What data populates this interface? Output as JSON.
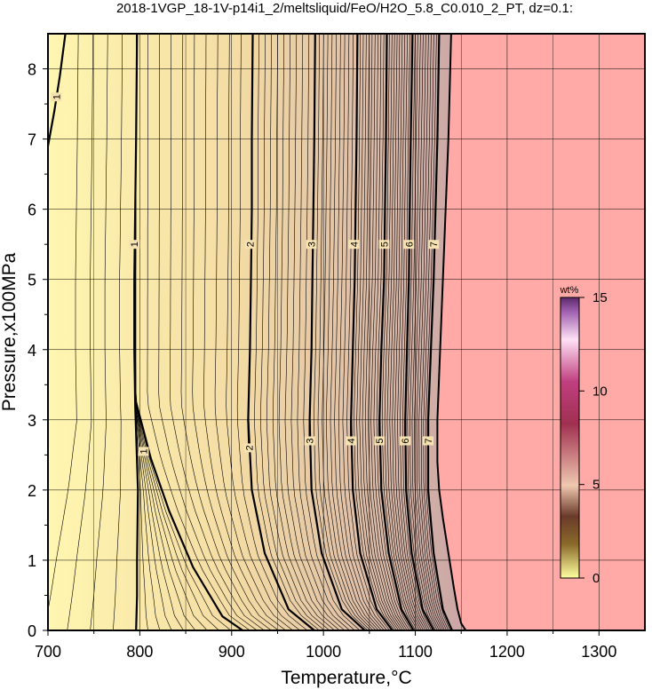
{
  "chart_data": {
    "type": "heatmap",
    "title": "2018-1VGP_18-1V-p14i1_2/meltsliquid/FeO/H2O_5.8_C0.010_2_PT, dz=0.1:",
    "xlabel": "Temperature,°C",
    "ylabel": "Pressure,x100MPa",
    "xlim": [
      700,
      1350
    ],
    "ylim": [
      0,
      8.5
    ],
    "x_ticks": [
      "700",
      "800",
      "900",
      "1000",
      "1100",
      "1200",
      "1300"
    ],
    "y_ticks": [
      "0",
      "1",
      "2",
      "3",
      "4",
      "5",
      "6",
      "7",
      "8"
    ],
    "grid": true,
    "contour_interval": 0.1,
    "colorbar": {
      "unit": "wt%",
      "range": [
        0,
        15
      ],
      "ticks": [
        "0",
        "5",
        "10",
        "15"
      ],
      "placement": "right-inside"
    },
    "no_data_color": "#ffaaa6",
    "low_value_color": "#fff6b0",
    "high_value_color": "#c9a5a5",
    "major_contours": [
      {
        "level": "1",
        "points": [
          [
            796,
            0
          ],
          [
            797,
            0.5
          ],
          [
            797,
            1
          ],
          [
            798,
            2
          ],
          [
            795,
            3.2
          ],
          [
            794,
            4
          ],
          [
            794,
            5
          ],
          [
            795,
            6
          ],
          [
            796,
            7
          ],
          [
            797,
            8.5
          ]
        ],
        "label_at": [
          794,
          5.5
        ]
      },
      {
        "level": "1",
        "points": [
          [
            912,
            0
          ],
          [
            890,
            0.2
          ],
          [
            858,
            0.9
          ],
          [
            832,
            1.7
          ],
          [
            812,
            2.45
          ],
          [
            803,
            2.9
          ],
          [
            796,
            3.25
          ]
        ],
        "label_at": [
          804,
          2.55
        ]
      },
      {
        "level": "1",
        "points": [
          [
            700,
            6.9
          ],
          [
            707,
            7.4
          ],
          [
            713,
            7.9
          ],
          [
            719,
            8.5
          ]
        ],
        "label_at": [
          709,
          7.6
        ]
      },
      {
        "level": "2",
        "points": [
          [
            990,
            0
          ],
          [
            962,
            0.3
          ],
          [
            936,
            1.1
          ],
          [
            922,
            2
          ],
          [
            918,
            3
          ],
          [
            920,
            4
          ],
          [
            921,
            5
          ],
          [
            922,
            6
          ],
          [
            922,
            7
          ],
          [
            923,
            8.5
          ]
        ],
        "label_at": [
          920,
          5.5
        ]
      },
      {
        "level": "2",
        "points": [
          [
            918,
            3
          ],
          [
            919,
            2.6
          ]
        ],
        "label_at": [
          919,
          2.6
        ]
      },
      {
        "level": "3",
        "points": [
          [
            1045,
            0
          ],
          [
            1020,
            0.3
          ],
          [
            998,
            1.1
          ],
          [
            987,
            2
          ],
          [
            985,
            3
          ],
          [
            987,
            4
          ],
          [
            988,
            5
          ],
          [
            989,
            6
          ],
          [
            990,
            7
          ],
          [
            991,
            8.5
          ]
        ],
        "label_at": [
          987,
          5.5
        ]
      },
      {
        "level": "3",
        "points": [
          [
            985,
            3
          ],
          [
            985,
            2.7
          ]
        ],
        "label_at": [
          985,
          2.7
        ]
      },
      {
        "level": "4",
        "points": [
          [
            1075,
            0
          ],
          [
            1058,
            0.3
          ],
          [
            1040,
            1.1
          ],
          [
            1032,
            2
          ],
          [
            1030,
            3
          ],
          [
            1032,
            4
          ],
          [
            1034,
            5
          ],
          [
            1035,
            6
          ],
          [
            1036,
            7
          ],
          [
            1037,
            8.5
          ]
        ],
        "label_at": [
          1033,
          5.5
        ]
      },
      {
        "level": "4",
        "points": [
          [
            1030,
            3
          ],
          [
            1030,
            2.7
          ]
        ],
        "label_at": [
          1030,
          2.7
        ]
      },
      {
        "level": "5",
        "points": [
          [
            1098,
            0
          ],
          [
            1085,
            0.3
          ],
          [
            1071,
            1.1
          ],
          [
            1063,
            2
          ],
          [
            1061,
            3
          ],
          [
            1063,
            4
          ],
          [
            1066,
            5
          ],
          [
            1067,
            6
          ],
          [
            1068,
            7
          ],
          [
            1069,
            8.5
          ]
        ],
        "label_at": [
          1066,
          5.5
        ]
      },
      {
        "level": "5",
        "points": [
          [
            1061,
            3
          ],
          [
            1061,
            2.7
          ]
        ],
        "label_at": [
          1061,
          2.7
        ]
      },
      {
        "level": "6",
        "points": [
          [
            1120,
            0
          ],
          [
            1108,
            0.3
          ],
          [
            1096,
            1.1
          ],
          [
            1090,
            2
          ],
          [
            1089,
            3
          ],
          [
            1091,
            4
          ],
          [
            1093,
            5
          ],
          [
            1094,
            6
          ],
          [
            1095,
            7
          ],
          [
            1097,
            8.5
          ]
        ],
        "label_at": [
          1093,
          5.5
        ]
      },
      {
        "level": "6",
        "points": [
          [
            1089,
            3
          ],
          [
            1089,
            2.7
          ]
        ],
        "label_at": [
          1089,
          2.7
        ]
      },
      {
        "level": "7",
        "points": [
          [
            1140,
            0
          ],
          [
            1130,
            0.3
          ],
          [
            1120,
            1.1
          ],
          [
            1114,
            2
          ],
          [
            1114,
            3
          ],
          [
            1117,
            4
          ],
          [
            1120,
            5
          ],
          [
            1122,
            6
          ],
          [
            1124,
            7
          ],
          [
            1126,
            8.5
          ]
        ],
        "label_at": [
          1120,
          5.5
        ]
      },
      {
        "level": "7",
        "points": [
          [
            1114,
            3
          ],
          [
            1114,
            2.7
          ]
        ],
        "label_at": [
          1114,
          2.7
        ]
      }
    ],
    "data_boundary": [
      [
        1155,
        0
      ],
      [
        1150,
        0.1
      ],
      [
        1146,
        0.3
      ],
      [
        1142,
        0.6
      ],
      [
        1136,
        1.1
      ],
      [
        1130,
        1.6
      ],
      [
        1126,
        2.0
      ],
      [
        1124,
        2.4
      ],
      [
        1124,
        3.0
      ],
      [
        1127,
        4
      ],
      [
        1130,
        5
      ],
      [
        1133,
        6
      ],
      [
        1136,
        7
      ],
      [
        1139,
        8.5
      ]
    ]
  }
}
